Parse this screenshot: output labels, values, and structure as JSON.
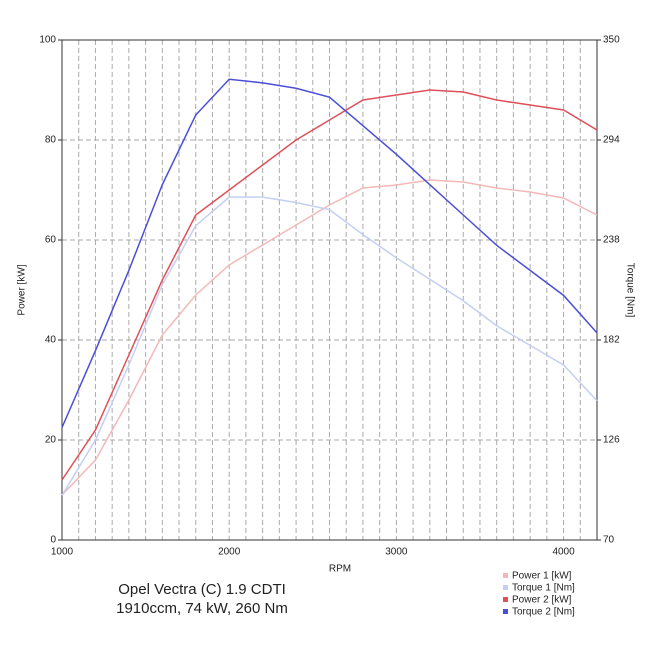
{
  "chart_data": {
    "type": "line",
    "title": "Opel Vectra (C) 1.9 CDTI",
    "subtitle": "1910ccm, 74 kW, 260 Nm",
    "x_label": "RPM",
    "y_label": "Power [kW]",
    "y2_label": "Torque [Nm]",
    "x": [
      1000,
      1200,
      1400,
      1600,
      1800,
      2000,
      2200,
      2400,
      2600,
      2800,
      3000,
      3200,
      3400,
      3600,
      3800,
      4000,
      4200
    ],
    "series": [
      {
        "name": "Power 1 [kW]",
        "color": "#f4b8b8",
        "values": [
          9,
          16,
          28,
          41,
          49,
          55,
          59,
          63,
          67,
          70.4,
          71,
          72,
          71.6,
          70.4,
          69.6,
          68.4,
          65
        ]
      },
      {
        "name": "Torque 1 [Nm]",
        "color": "#c4cff2",
        "axis": "y2",
        "values": [
          95,
          126,
          168,
          213,
          246,
          262,
          262,
          259,
          255,
          241,
          228,
          216,
          204,
          190,
          179,
          168,
          148
        ]
      },
      {
        "name": "Power 2 [kW]",
        "color": "#e0505a",
        "values": [
          12,
          22,
          37,
          52,
          65,
          70,
          75,
          80,
          84,
          88,
          89,
          90,
          89.6,
          88,
          87,
          86,
          82
        ]
      },
      {
        "name": "Torque 2 [Nm]",
        "color": "#4a4fd6",
        "axis": "y2",
        "values": [
          133,
          176,
          221,
          269,
          308,
          328,
          326,
          323,
          318,
          302,
          286,
          269,
          252,
          235,
          221,
          207,
          186
        ]
      }
    ],
    "xlim": [
      1000,
      4200
    ],
    "xticks": [
      1000,
      2000,
      3000,
      4000
    ],
    "xminorticks": [
      1100,
      1200,
      1300,
      1400,
      1500,
      1600,
      1700,
      1800,
      1900,
      2100,
      2200,
      2300,
      2400,
      2500,
      2600,
      2700,
      2800,
      2900,
      3100,
      3200,
      3300,
      3400,
      3500,
      3600,
      3700,
      3800,
      3900,
      4100,
      4200
    ],
    "ylim": [
      0,
      100
    ],
    "yticks": [
      0,
      20,
      40,
      60,
      80,
      100
    ],
    "y2lim": [
      70,
      350
    ],
    "y2ticks": [
      70,
      126,
      182,
      238,
      294,
      350
    ],
    "grid": true,
    "legend": "lower right"
  }
}
